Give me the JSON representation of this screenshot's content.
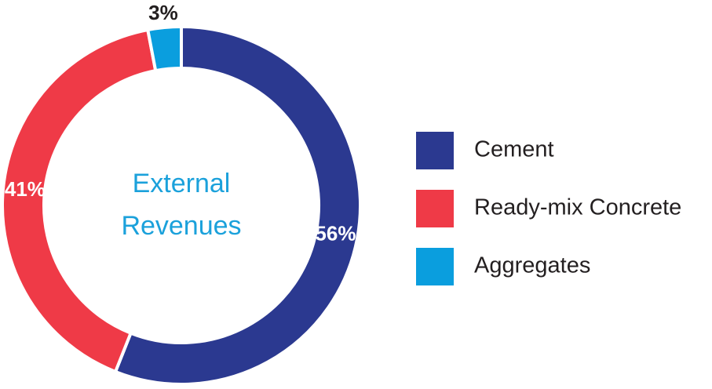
{
  "chart_data": {
    "type": "donut",
    "center_label": [
      "External",
      "Revenues"
    ],
    "categories": [
      "Cement",
      "Ready-mix Concrete",
      "Aggregates"
    ],
    "values": [
      56,
      41,
      3
    ],
    "value_labels": [
      "56%",
      "41%",
      "3%"
    ],
    "colors": [
      "#2b3990",
      "#ef3a47",
      "#0a9ede"
    ],
    "legend": "right"
  }
}
